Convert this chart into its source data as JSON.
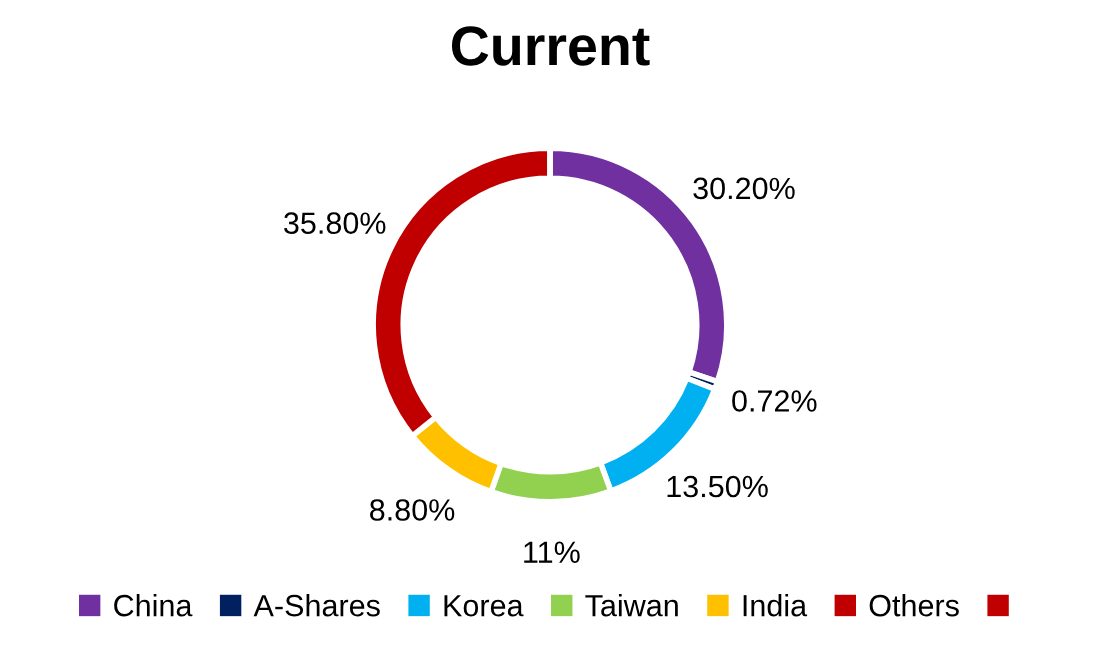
{
  "chart_data": {
    "type": "donut",
    "title": "Current",
    "categories": [
      "China",
      "A-Shares",
      "Korea",
      "Taiwan",
      "India",
      "Others",
      null
    ],
    "values": [
      30.2,
      0.72,
      13.5,
      11,
      8.8,
      35.8,
      0
    ],
    "colors": [
      "#7030a0",
      "#002060",
      "#00b0f0",
      "#92d050",
      "#ffc000",
      "#c00000",
      "#c00000"
    ],
    "value_labels": [
      "30.20%",
      "0.72%",
      "13.50%",
      "11%",
      "8.80%",
      "35.80%",
      null
    ],
    "legend": "bottom"
  }
}
